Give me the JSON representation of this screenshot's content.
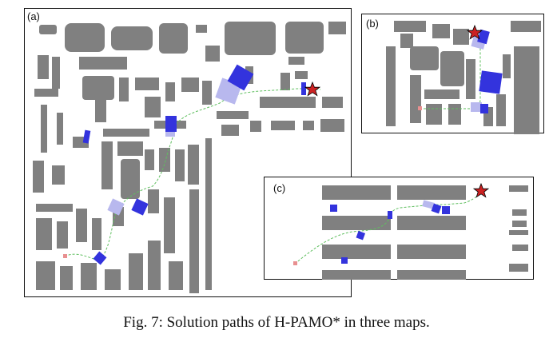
{
  "figure": {
    "caption": "Fig. 7: Solution paths of H-PAMO* in three maps.",
    "colors": {
      "obstacle": "#808080",
      "path": "#5fbf5f",
      "movable_object": "#3333dd",
      "movable_object_ghost": "#b8b8ee",
      "goal_star": "#cc2222",
      "start_marker": "#e89090"
    },
    "panels": [
      {
        "id": "a",
        "label": "(a)",
        "icons": [
          "start-marker",
          "goal-star-icon",
          "movable-objects"
        ]
      },
      {
        "id": "b",
        "label": "(b)",
        "icons": [
          "start-marker",
          "goal-star-icon",
          "movable-objects"
        ]
      },
      {
        "id": "c",
        "label": "(c)",
        "icons": [
          "start-marker",
          "goal-star-icon",
          "movable-objects"
        ]
      }
    ]
  }
}
